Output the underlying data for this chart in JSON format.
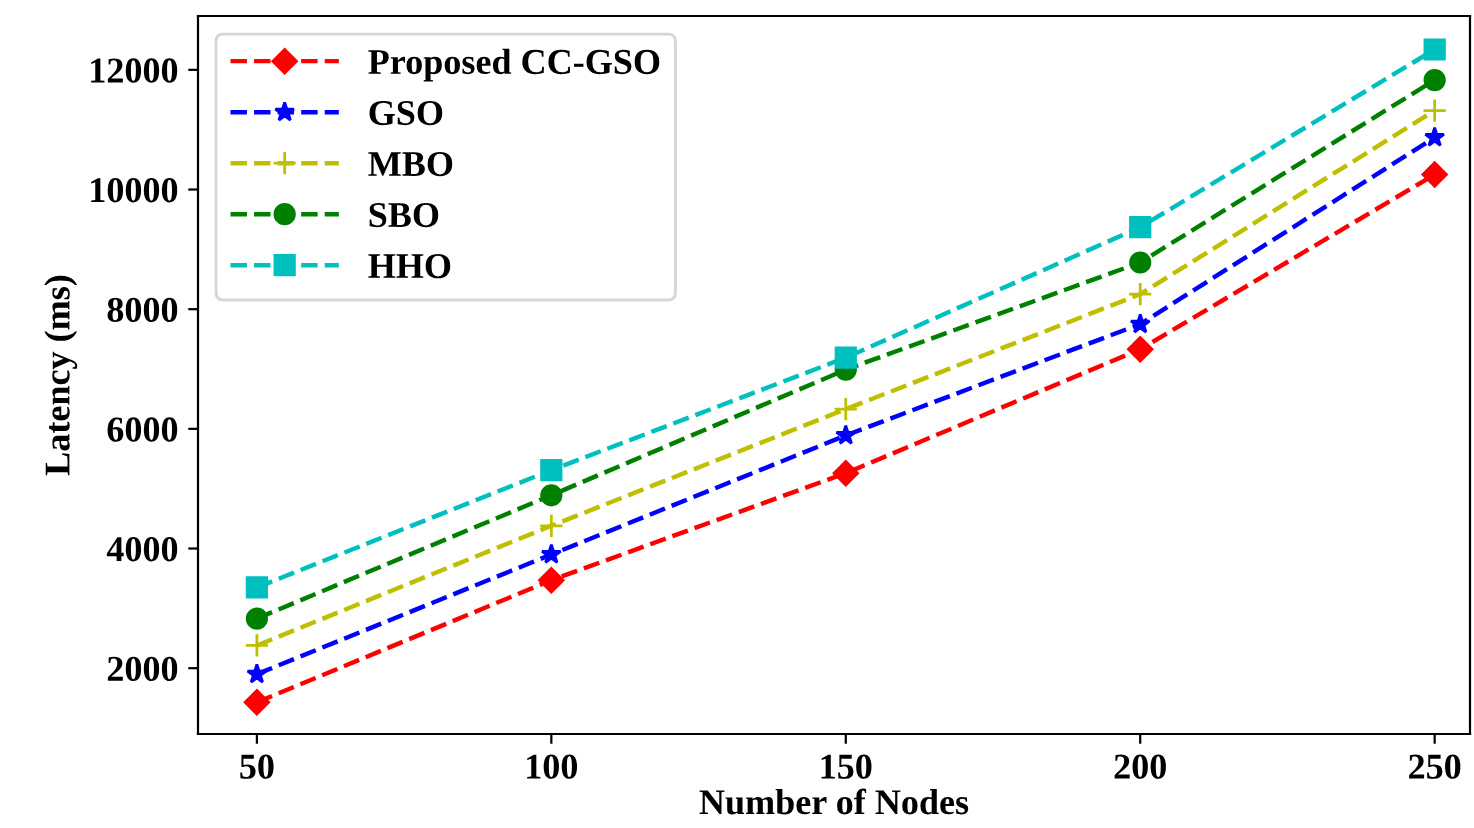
{
  "chart_data": {
    "type": "line",
    "xlabel": "Number of Nodes",
    "ylabel": "Latency (ms)",
    "x": [
      50,
      100,
      150,
      200,
      250
    ],
    "xlim": [
      40,
      256
    ],
    "xticks": [
      50,
      100,
      150,
      200,
      250
    ],
    "ylim": [
      900,
      12900
    ],
    "yticks": [
      2000,
      4000,
      6000,
      8000,
      10000,
      12000
    ],
    "grid": false,
    "legend": "top left",
    "line_style": "dashed",
    "series": [
      {
        "name": "Proposed CC-GSO",
        "color": "#ff0000",
        "marker": "diamond",
        "values": [
          1430,
          3470,
          5260,
          7330,
          10250
        ]
      },
      {
        "name": "GSO",
        "color": "#0000ff",
        "marker": "star",
        "values": [
          1900,
          3900,
          5890,
          7750,
          10870
        ]
      },
      {
        "name": "MBO",
        "color": "#bfbf00",
        "marker": "cross",
        "values": [
          2380,
          4380,
          6330,
          8250,
          11320
        ]
      },
      {
        "name": "SBO",
        "color": "#008000",
        "marker": "circle",
        "values": [
          2830,
          4890,
          6990,
          8780,
          11830
        ]
      },
      {
        "name": "HHO",
        "color": "#00bfbf",
        "marker": "square",
        "values": [
          3350,
          5310,
          7190,
          9370,
          12340
        ]
      }
    ]
  }
}
